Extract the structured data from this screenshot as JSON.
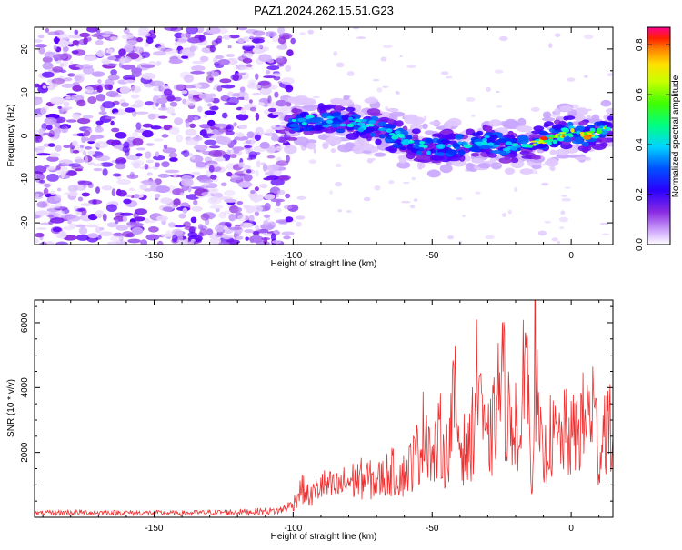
{
  "figure_title": "PAZ1.2024.262.15.51.G23",
  "colors": {
    "snr_line": "#ee3030",
    "colormap": [
      "#ffffff",
      "#e6d2ff",
      "#8a2be2",
      "#4b00ff",
      "#0050ff",
      "#00d4ff",
      "#00ff80",
      "#40ff00",
      "#c8ff00",
      "#ffe000",
      "#ff8000",
      "#ff2000",
      "#ff0090"
    ]
  },
  "chart_data": [
    {
      "type": "heatmap",
      "title": "",
      "xlabel": "Height of straight line (km)",
      "ylabel": "Frequency (Hz)",
      "xlim": [
        -193,
        15
      ],
      "ylim": [
        -25,
        25
      ],
      "x_ticks": [
        -150,
        -100,
        -50,
        0
      ],
      "y_ticks": [
        -20,
        -10,
        0,
        10,
        20
      ],
      "colorbar": {
        "label": "Normalized spectral amplitude",
        "range": [
          0,
          0.87
        ],
        "ticks": [
          0.0,
          0.2,
          0.4,
          0.6,
          0.8
        ]
      },
      "description_of_structure": {
        "noise_region_x": [
          -193,
          -100
        ],
        "signal_ridge": [
          {
            "x": -100,
            "y": 3
          },
          {
            "x": -90,
            "y": 3.5
          },
          {
            "x": -80,
            "y": 3
          },
          {
            "x": -70,
            "y": 2
          },
          {
            "x": -60,
            "y": -1
          },
          {
            "x": -50,
            "y": -3
          },
          {
            "x": -40,
            "y": -2
          },
          {
            "x": -30,
            "y": -1
          },
          {
            "x": -20,
            "y": -3
          },
          {
            "x": -15,
            "y": -2
          },
          {
            "x": -10,
            "y": -1
          },
          {
            "x": -5,
            "y": 0
          },
          {
            "x": 0,
            "y": 1
          },
          {
            "x": 5,
            "y": 0
          },
          {
            "x": 10,
            "y": 1
          },
          {
            "x": 15,
            "y": 2
          }
        ]
      }
    },
    {
      "type": "line",
      "title": "",
      "xlabel": "Height of straight line (km)",
      "ylabel": "SNR (10 * v/v)",
      "xlim": [
        -193,
        15
      ],
      "ylim": [
        0,
        6700
      ],
      "x_ticks": [
        -150,
        -100,
        -50,
        0
      ],
      "y_ticks": [
        2000,
        4000,
        6000
      ],
      "series": [
        {
          "x": [
            -193,
            -180,
            -160,
            -140,
            -120,
            -105,
            -100,
            -97,
            -94,
            -90,
            -85,
            -80,
            -75,
            -70,
            -65,
            -60,
            -55,
            -52,
            -50,
            -47,
            -45,
            -42,
            -40,
            -37,
            -35,
            -33,
            -31,
            -28,
            -25,
            -22,
            -20,
            -18,
            -17,
            -16,
            -15,
            -14,
            -13,
            -12,
            -11,
            -10,
            -8,
            -5,
            -2,
            0,
            3,
            6,
            8,
            10,
            12,
            15
          ],
          "y": [
            120,
            150,
            140,
            130,
            160,
            200,
            400,
            900,
            600,
            1000,
            900,
            1100,
            1200,
            1100,
            1400,
            1300,
            2000,
            3000,
            1700,
            2500,
            1800,
            3600,
            2300,
            1900,
            3000,
            4900,
            2000,
            2700,
            4400,
            2800,
            3300,
            1400,
            6600,
            5200,
            2500,
            1300,
            5700,
            2700,
            2200,
            1600,
            2500,
            2300,
            2600,
            2400,
            2800,
            3100,
            3500,
            1700,
            3000,
            2500
          ]
        }
      ]
    }
  ]
}
